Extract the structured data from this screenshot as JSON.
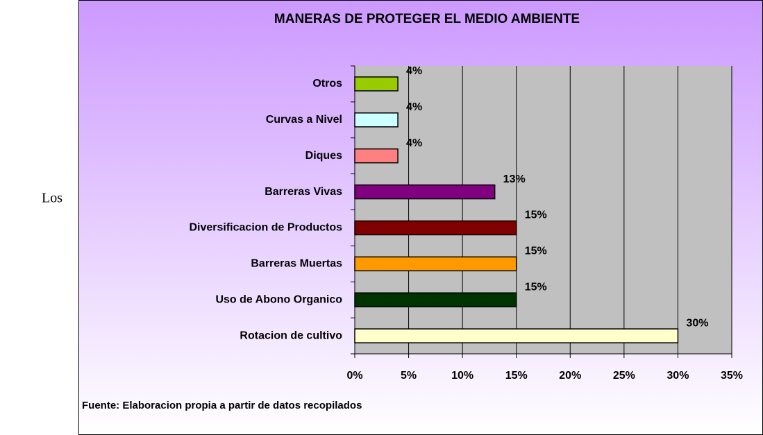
{
  "side_text": "Los",
  "chart_data": {
    "type": "bar",
    "orientation": "horizontal",
    "title": "MANERAS DE PROTEGER EL MEDIO AMBIENTE",
    "source": "Fuente: Elaboracion propia a partir de datos recopilados",
    "categories": [
      "Rotacion de cultivo",
      "Uso de Abono Organico",
      "Barreras Muertas",
      "Diversificacion de Productos",
      "Barreras Vivas",
      "Diques",
      "Curvas a Nivel",
      "Otros"
    ],
    "values": [
      30,
      15,
      15,
      15,
      13,
      4,
      4,
      4
    ],
    "value_labels": [
      "30%",
      "15%",
      "15%",
      "15%",
      "13%",
      "4%",
      "4%",
      "4%"
    ],
    "colors": [
      "#ffffcc",
      "#003300",
      "#ff9900",
      "#800000",
      "#800080",
      "#ff8080",
      "#ccffff",
      "#99cc00"
    ],
    "xlim": [
      0,
      35
    ],
    "xticks": [
      {
        "value": 0,
        "label": "0%"
      },
      {
        "value": 5,
        "label": "5%"
      },
      {
        "value": 10,
        "label": "10%"
      },
      {
        "value": 15,
        "label": "15%"
      },
      {
        "value": 20,
        "label": "20%"
      },
      {
        "value": 25,
        "label": "25%"
      },
      {
        "value": 30,
        "label": "30%"
      },
      {
        "value": 35,
        "label": "35%"
      }
    ],
    "grid": true
  }
}
